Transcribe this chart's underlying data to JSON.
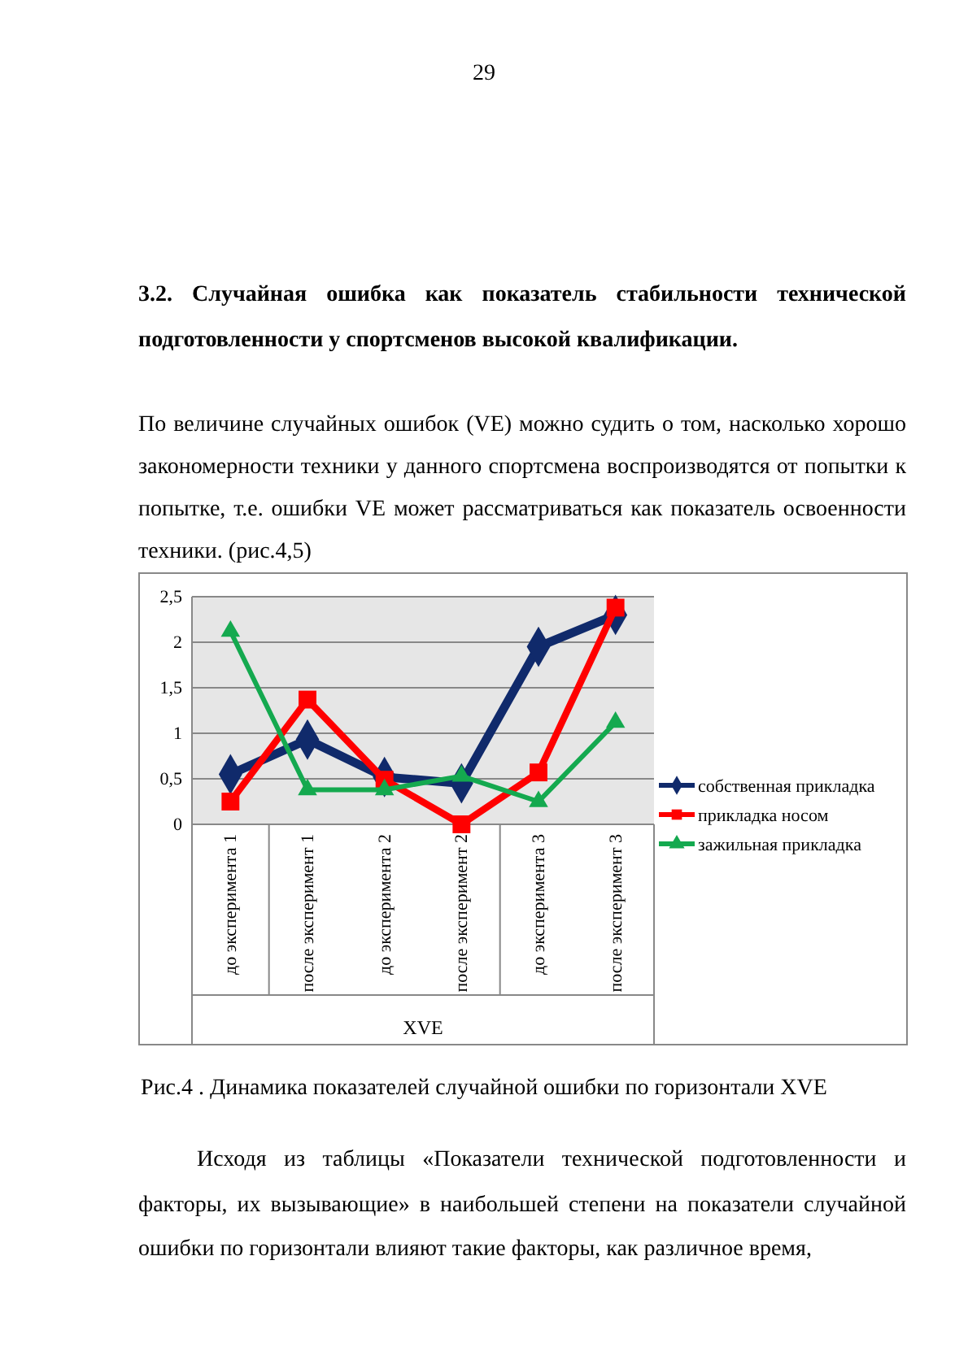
{
  "chart_data": {
    "type": "line",
    "title": "Рис.4 . Динамика показателей случайной ошибки по горизонтали  XVE",
    "xlabel": "XVE",
    "categories": [
      "до эксперимента 1",
      "после эксперимент 1",
      "до эксперимента 2",
      "после эксперимент 2",
      "до эксперимента 3",
      "после эксперимент 3"
    ],
    "series": [
      {
        "name": "собственная прикладка",
        "color": "#102a6b",
        "marker": "diamond",
        "values": [
          0.55,
          0.93,
          0.52,
          0.45,
          1.95,
          2.3
        ]
      },
      {
        "name": "прикладка носом",
        "color": "#ff0000",
        "marker": "square",
        "values": [
          0.25,
          1.37,
          0.49,
          0,
          0.57,
          2.38
        ]
      },
      {
        "name": "зажильная прикладка",
        "color": "#14a94f",
        "marker": "triangle",
        "values": [
          2.12,
          0.38,
          0.38,
          0.53,
          0.25,
          1.12
        ]
      }
    ],
    "ylim": [
      0,
      2.5
    ],
    "yticks": [
      0,
      {
        "value": 0.5,
        "label": "0,5"
      },
      1,
      {
        "value": 1.5,
        "label": "1,5"
      },
      2,
      {
        "value": 2.5,
        "label": "2,5"
      }
    ],
    "grid": "y",
    "legend": "right",
    "line_style": "solid",
    "annotations": [
      "29",
      "3.2. Случайная ошибка как показатель стабильности технической подготовленности  у спортсменов высокой квалификации.",
      "По величине случайных ошибок (VE)  можно судить о том, насколько хорошо закономерности техники у данного спортсмена воспроизводятся от попытки к попытке, т.е. ошибки VE может рассматриваться как показатель освоенности техники. (рис.4,5)",
      "Исходя из таблицы  «Показатели технической подготовленности и факторы, их вызывающие» в наибольшей степени на показатели случайной ошибки по горизонтали влияют такие факторы, как различное время,"
    ]
  }
}
